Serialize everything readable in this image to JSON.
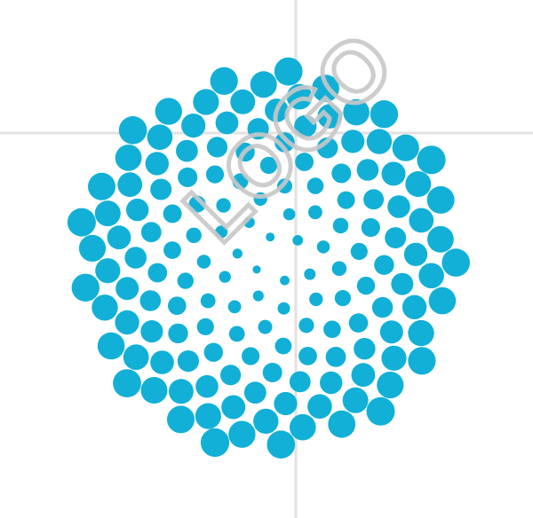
{
  "artwork": {
    "name": "spiral-dot-logo",
    "dot_color": "#12b0d6",
    "background_color": "#ffffff",
    "guide_line_color": "#e2e2e2",
    "watermark": {
      "text": "LOGO",
      "color": "#c8c8c8"
    }
  }
}
